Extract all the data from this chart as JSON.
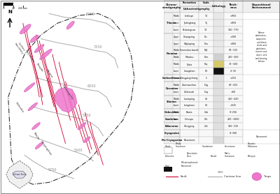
{
  "bg_color": "#f5f5f0",
  "map_bg": "#ffffff",
  "table_bg": "#ffffff",
  "contour_color": "#aaaaaa",
  "fault_color": "#cc0033",
  "trap_color": "#ee77cc",
  "trap_edge": "#cc55aa",
  "boundary_color": "#333333",
  "contour_labels": [
    "8250",
    "7250",
    "6250",
    "5750",
    "5000",
    "5750"
  ],
  "strat_rows": [
    {
      "era": "Triassic",
      "pos": "Middle",
      "formation": "Leikoupi",
      "code": "T₂l",
      "thick": ">950",
      "color": "#e8e8e8"
    },
    {
      "era": "Triassic",
      "pos": "Lower",
      "formation": "Jialingjiang",
      "code": "T₁j",
      "thick": ">950",
      "color": "#e8e8e8"
    },
    {
      "era": "Triassic",
      "pos": "Lower",
      "formation": "Feixianguan",
      "code": "T₁f",
      "thick": "300~770",
      "color": "#e8e8e8"
    },
    {
      "era": "Permian",
      "pos": "Upper",
      "formation": "Changxing",
      "code": "P₃c",
      "thick": ">300",
      "color": "#e8e8e8"
    },
    {
      "era": "Permian",
      "pos": "Upper",
      "formation": "Wujiaping",
      "code": "P₃w",
      "thick": ">900",
      "color": "#e8e8e8"
    },
    {
      "era": "Permian",
      "pos": "Middle",
      "formation": "Emeishan basalt",
      "code": "P₂β",
      "thick": "50~315",
      "color": "#e8e8e8"
    },
    {
      "era": "Permian",
      "pos": "Middle",
      "formation": "Maokou",
      "code": "P₂m",
      "thick": "200~300",
      "color": "#d0d0d0"
    },
    {
      "era": "Permian",
      "pos": "Middle",
      "formation": "Qixia",
      "code": "P₂q",
      "thick": "70~160",
      "color": "#d4c86a"
    },
    {
      "era": "Permian",
      "pos": "Lower",
      "formation": "Liangshan",
      "code": "P₁l",
      "thick": "2~35",
      "color": "#111111"
    },
    {
      "era": "Carboniferous",
      "pos": "Lower",
      "formation": "Dongpingchang",
      "code": "C",
      "thick": ">216",
      "color": "#e0e0e0"
    },
    {
      "era": "Devonian",
      "pos": "Middle",
      "formation": "Guanwushan",
      "code": "D₂g",
      "thick": "80~415",
      "color": "#e0e0e0"
    },
    {
      "era": "Devonian",
      "pos": "Lower",
      "formation": "Qinbasah",
      "code": "D₁q",
      "thick": ">80",
      "color": "#e0e0e0"
    },
    {
      "era": "Silurian",
      "pos": "Middle",
      "formation": "Luoreping",
      "code": "S₂l",
      "thick": "200~420",
      "color": "#e0e0e0"
    },
    {
      "era": "Silurian",
      "pos": "Lower",
      "formation": "Longmaxi",
      "code": "S₁l",
      "thick": ">525",
      "color": "#e0e0e0"
    },
    {
      "era": "Ordovician",
      "pos": "Middle",
      "formation": "Baota",
      "code": "O₂b",
      "thick": "0~256",
      "color": "#e0e0e0"
    },
    {
      "era": "Cambrian",
      "pos": "Lower",
      "formation": "Huluspu",
      "code": "S₁h",
      "thick": "200~1060",
      "color": "#e0e0e0"
    },
    {
      "era": "Ediacaran",
      "pos": "",
      "formation": "Dengying",
      "code": "Z₂d",
      "thick": "150~315",
      "color": "#e0e0e0"
    },
    {
      "era": "Cryogenian",
      "pos": "",
      "formation": "",
      "code": "",
      "thick": "0~300",
      "color": "#e8e8e8"
    },
    {
      "era": "Pre-Cryogenian",
      "pos": "",
      "formation": "Basement",
      "code": "",
      "thick": "",
      "color": "#d8d8d8"
    }
  ],
  "legend_items": [
    {
      "label": "Shale",
      "hatch": "---",
      "fc": "white"
    },
    {
      "label": "Shaly limestone",
      "hatch": "xxx",
      "fc": "#cccccc"
    },
    {
      "label": "Sandstone",
      "hatch": "...",
      "fc": "white"
    },
    {
      "label": "Limestone",
      "hatch": "///",
      "fc": "white"
    },
    {
      "label": "Bauxitic Mudstone",
      "hatch": "xxx",
      "fc": "#dddddd"
    },
    {
      "label": "Dolomite",
      "hatch": "++",
      "fc": "white"
    },
    {
      "label": "Pyroclastic lime",
      "hatch": "***",
      "fc": "white"
    },
    {
      "label": "Basalt",
      "hatch": "ooo",
      "fc": "white"
    },
    {
      "label": "Marls limestone",
      "hatch": "///",
      "fc": "#cccccc"
    },
    {
      "label": "Mihuyin",
      "hatch": "xxx",
      "fc": "#aaaaaa"
    },
    {
      "label": "Coal",
      "fc": "#111111"
    },
    {
      "label": "Metamorphosed Basement",
      "hatch": "\\\\\\",
      "fc": "#cccccc"
    }
  ]
}
